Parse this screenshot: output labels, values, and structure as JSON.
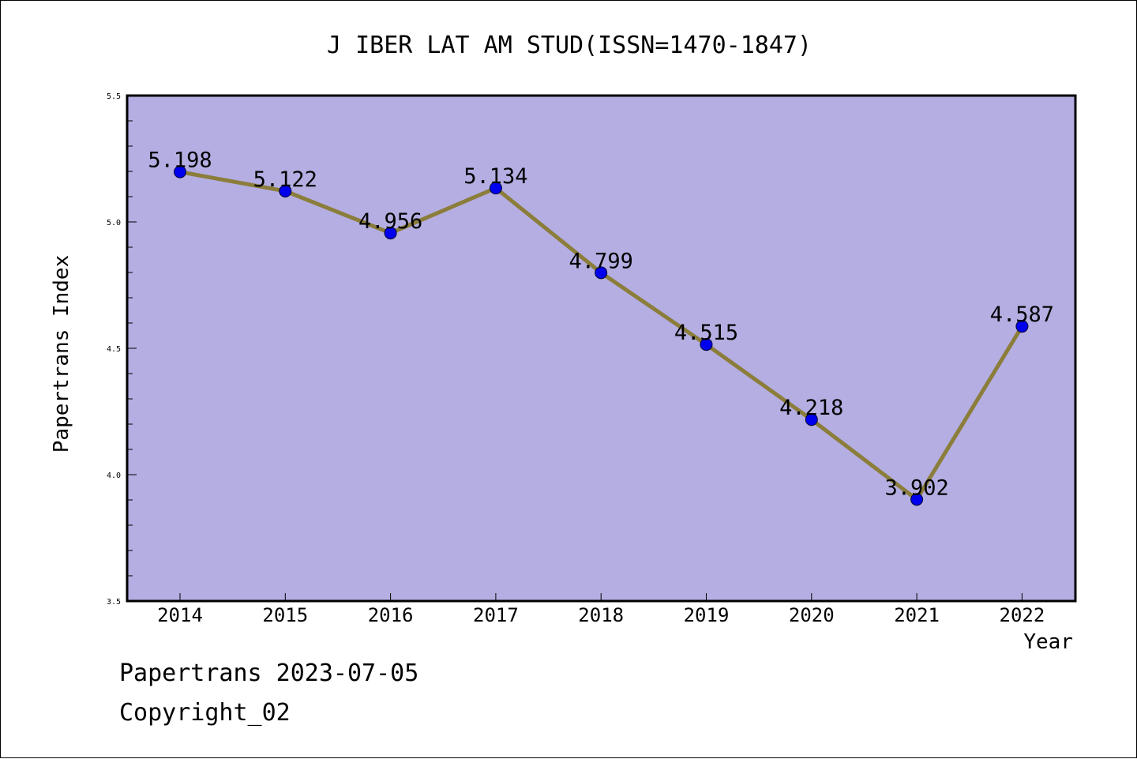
{
  "chart_data": {
    "type": "line",
    "title": "J IBER LAT AM STUD(ISSN=1470-1847)",
    "xlabel": "Year",
    "ylabel": "Papertrans Index",
    "ylim": [
      3.5,
      5.5
    ],
    "yticks": [
      "3.5",
      "4.0",
      "4.5",
      "5.0",
      "5.5"
    ],
    "categories": [
      "2014",
      "2015",
      "2016",
      "2017",
      "2018",
      "2019",
      "2020",
      "2021",
      "2022"
    ],
    "series": [
      {
        "values": [
          5.198,
          5.122,
          4.956,
          5.134,
          4.799,
          4.515,
          4.218,
          3.902,
          4.587
        ],
        "labels": [
          "5.198",
          "5.122",
          "4.956",
          "5.134",
          "4.799",
          "4.515",
          "4.218",
          "3.902",
          "4.587"
        ]
      }
    ],
    "grid": false,
    "colors": {
      "plot_background": "#b4aee2",
      "line": "#8b7d3a",
      "marker": "#0000ee"
    }
  },
  "footer": {
    "stamp": "Papertrans 2023-07-05",
    "copyright": "Copyright_02"
  }
}
